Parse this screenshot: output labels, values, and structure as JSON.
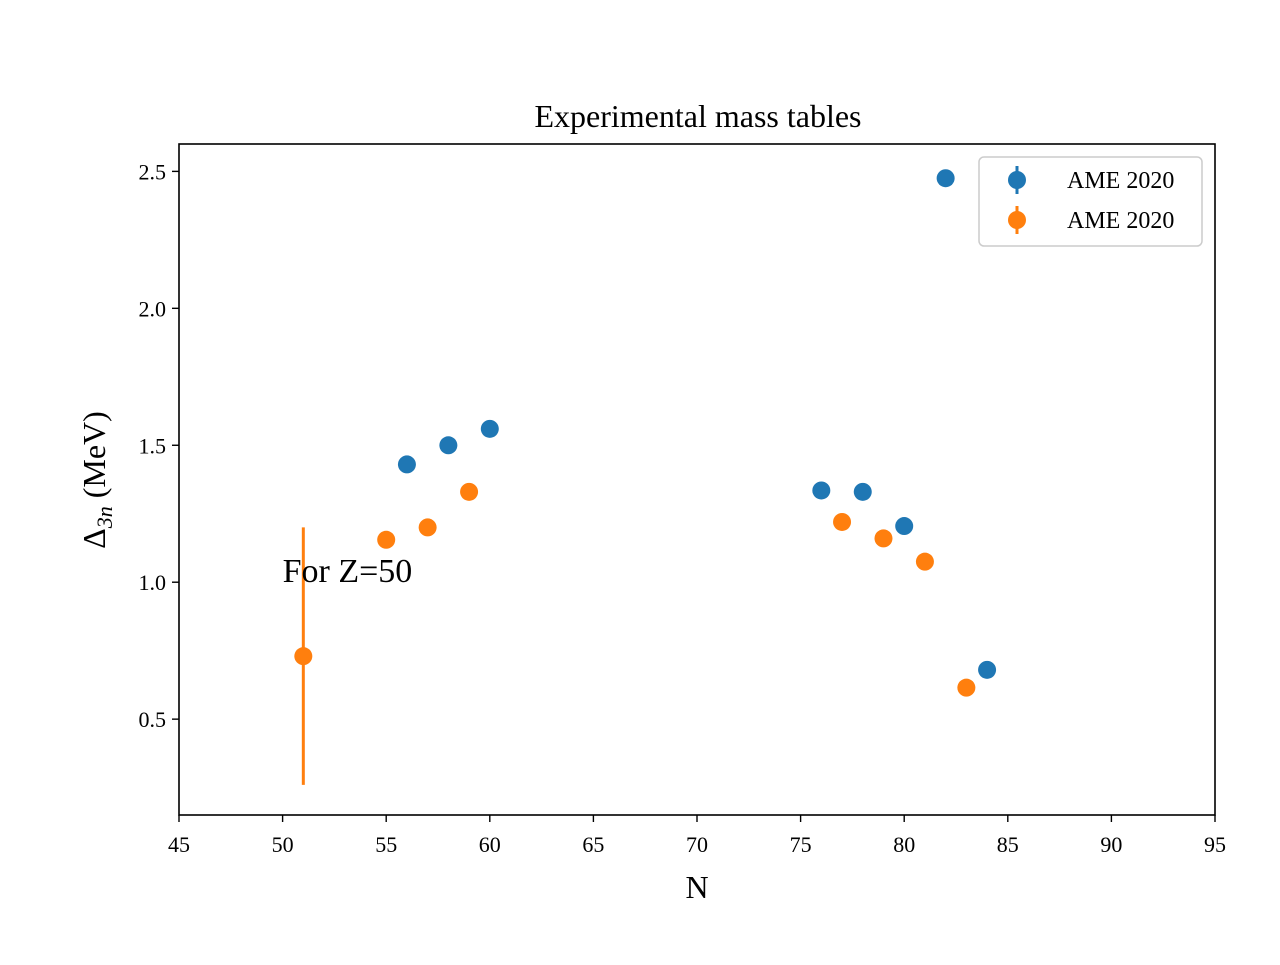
{
  "chart_data": {
    "type": "scatter",
    "title": "Experimental mass tables",
    "xlabel": "N",
    "ylabel_main": "Δ",
    "ylabel_sub": "3n",
    "ylabel_unit": " (MeV)",
    "xlim": [
      45,
      95
    ],
    "ylim": [
      0.15,
      2.6
    ],
    "xticks": [
      45,
      50,
      55,
      60,
      65,
      70,
      75,
      80,
      85,
      90,
      95
    ],
    "yticks": [
      0.5,
      1.0,
      1.5,
      2.0,
      2.5
    ],
    "xtick_labels": [
      "45",
      "50",
      "55",
      "60",
      "65",
      "70",
      "75",
      "80",
      "85",
      "90",
      "95"
    ],
    "ytick_labels": [
      "0.5",
      "1.0",
      "1.5",
      "2.0",
      "2.5"
    ],
    "grid": false,
    "legend_position": "top-right",
    "series": [
      {
        "name": "AME 2020",
        "color": "#1f77b4",
        "x": [
          56,
          58,
          60,
          76,
          78,
          80,
          82,
          84
        ],
        "y": [
          1.43,
          1.5,
          1.56,
          1.335,
          1.33,
          1.205,
          2.475,
          0.68
        ],
        "yerr": [
          0,
          0,
          0,
          0,
          0,
          0,
          0,
          0
        ]
      },
      {
        "name": "AME 2020",
        "color": "#ff7f0e",
        "x": [
          51,
          55,
          57,
          59,
          77,
          79,
          81,
          83
        ],
        "y": [
          0.73,
          1.155,
          1.2,
          1.33,
          1.22,
          1.16,
          1.075,
          0.615
        ],
        "yerr": [
          0.47,
          0,
          0,
          0,
          0,
          0,
          0,
          0
        ]
      }
    ],
    "annotations": [
      {
        "text": "For Z=50",
        "x": 50,
        "y": 1.0
      }
    ]
  }
}
